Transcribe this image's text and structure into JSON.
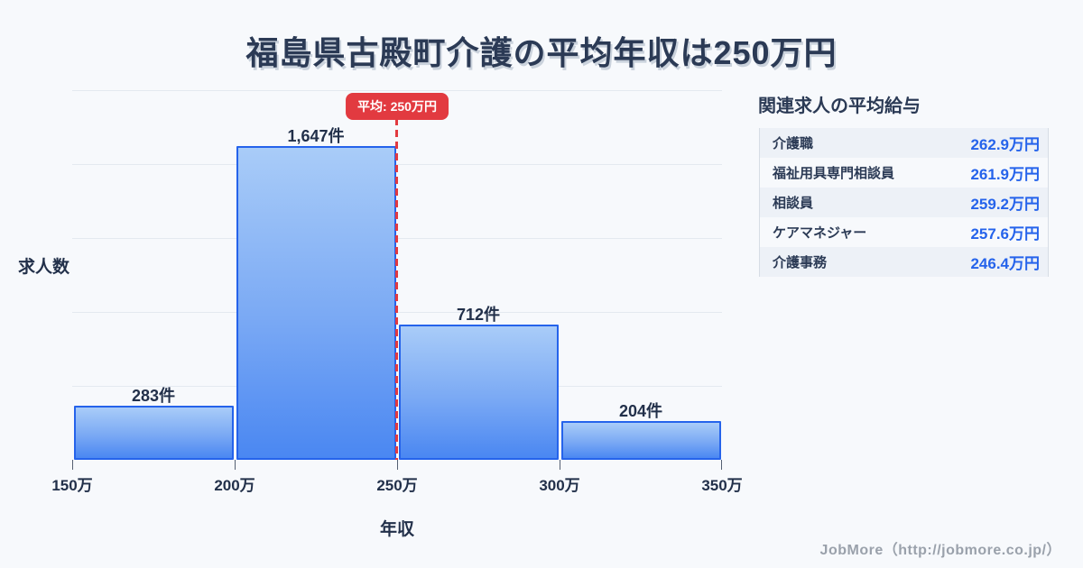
{
  "title": "福島県古殿町介護の平均年収は250万円",
  "chart_data": {
    "type": "bar",
    "subtype": "histogram",
    "title": "福島県古殿町介護の平均年収は250万円",
    "xlabel": "年収",
    "ylabel": "求人数",
    "categories": [
      "150万-200万",
      "200万-250万",
      "250万-300万",
      "300万-350万"
    ],
    "values": [
      283,
      1647,
      712,
      204
    ],
    "value_labels": [
      "283件",
      "1,647件",
      "712件",
      "204件"
    ],
    "x_tick_labels": [
      "150万",
      "200万",
      "250万",
      "300万",
      "350万"
    ],
    "ylim": [
      0,
      1940
    ],
    "grid": "horizontal",
    "gridline_count": 5,
    "average_marker": {
      "label": "平均: 250万円",
      "x_value": "250万",
      "position_fraction": 0.5,
      "color": "#e23a40"
    },
    "bar_fill_top": "#a9ccf8",
    "bar_fill_bottom": "#4a87f2",
    "bar_border": "#2563eb"
  },
  "related_jobs": {
    "heading": "関連求人の平均給与",
    "rows": [
      {
        "label": "介護職",
        "value": "262.9万円"
      },
      {
        "label": "福祉用具専門相談員",
        "value": "261.9万円"
      },
      {
        "label": "相談員",
        "value": "259.2万円"
      },
      {
        "label": "ケアマネジャー",
        "value": "257.6万円"
      },
      {
        "label": "介護事務",
        "value": "246.4万円"
      }
    ],
    "value_color": "#2563eb"
  },
  "footer": {
    "credit": "JobMore（http://jobmore.co.jp/）"
  },
  "colors": {
    "background": "#f7f9fc",
    "title_text": "#2b3a55",
    "grid": "#e4e9f0",
    "accent_red": "#e23a40",
    "accent_blue": "#2563eb",
    "table_alt_row": "#edf1f7",
    "footer_text": "#9aa1ab"
  }
}
